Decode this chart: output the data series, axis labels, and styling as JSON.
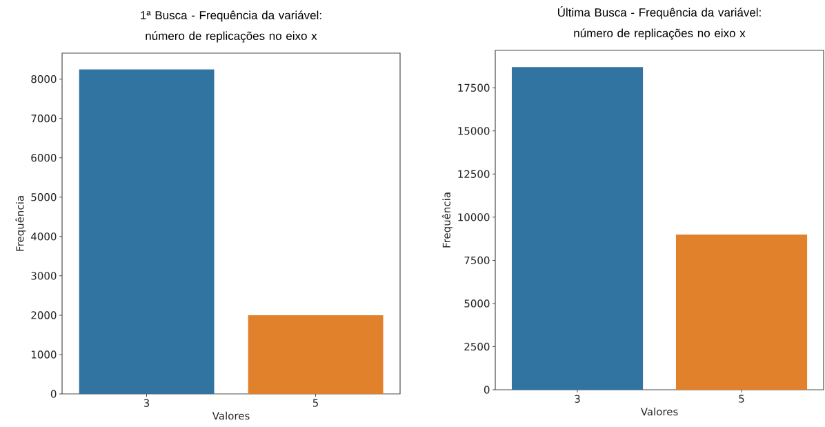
{
  "chart_data": [
    {
      "type": "bar",
      "title": "1ª Busca - Frequência da variável: número de replicações no eixo x",
      "xlabel": "Valores",
      "ylabel": "Frequência",
      "categories": [
        "3",
        "5"
      ],
      "values": [
        8250,
        2000
      ],
      "colors": [
        "#3274a1",
        "#e1812c"
      ],
      "ylim": [
        0,
        8660
      ],
      "yticks": [
        0,
        1000,
        2000,
        3000,
        4000,
        5000,
        6000,
        7000,
        8000
      ]
    },
    {
      "type": "bar",
      "title": "Última Busca - Frequência da variável: número de replicações no eixo x",
      "xlabel": "Valores",
      "ylabel": "Frequência",
      "categories": [
        "3",
        "5"
      ],
      "values": [
        18700,
        9000
      ],
      "colors": [
        "#3274a1",
        "#e1812c"
      ],
      "ylim": [
        0,
        19670
      ],
      "yticks": [
        0,
        2500,
        5000,
        7500,
        10000,
        12500,
        15000,
        17500
      ]
    }
  ]
}
